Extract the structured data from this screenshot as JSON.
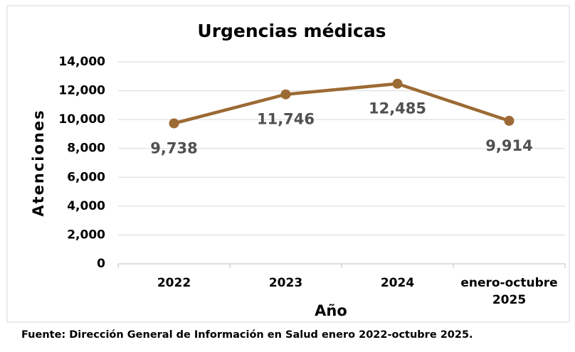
{
  "chart_data": {
    "type": "line",
    "title": "Urgencias médicas",
    "x_label": "Año",
    "y_label": "Atenciones",
    "source": "Fuente: Dirección General de Información en Salud enero 2022-octubre 2025.",
    "categories": [
      "2022",
      "2023",
      "2024",
      "enero-octubre 2025"
    ],
    "series": [
      {
        "name": "Atenciones",
        "color": "#9c6a34",
        "values": [
          9738,
          11746,
          12485,
          9914
        ],
        "value_labels": [
          "9,738",
          "11,746",
          "12,485",
          "9,914"
        ]
      }
    ],
    "ylim": [
      0,
      14000
    ],
    "yticks": [
      0,
      {
        "value": 2000,
        "label": "2,000"
      },
      {
        "value": 4000,
        "label": "4,000"
      },
      {
        "value": 6000,
        "label": "6,000"
      },
      {
        "value": 8000,
        "label": "8,000"
      },
      {
        "value": 10000,
        "label": "10,000"
      },
      {
        "value": 12000,
        "label": "12,000"
      },
      {
        "value": 14000,
        "label": "14,000"
      }
    ],
    "grid": true
  }
}
